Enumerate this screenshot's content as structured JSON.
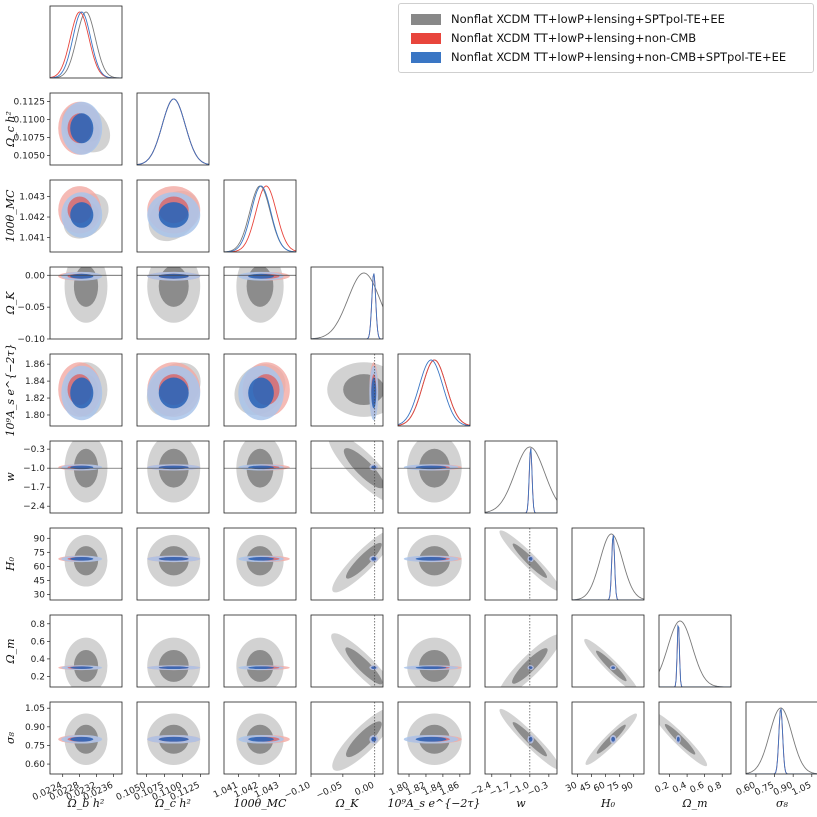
{
  "chart_data": {
    "type": "corner-triangle-plot",
    "params": [
      {
        "label": "Ω_b h²",
        "ticks": [
          "0.0224",
          "0.0228",
          "0.0232",
          "0.0236"
        ],
        "range": [
          0.0221,
          0.0238
        ]
      },
      {
        "label": "Ω_c h²",
        "ticks": [
          "0.1050",
          "0.1075",
          "0.1100",
          "0.1125"
        ],
        "range": [
          0.1037,
          0.1137
        ]
      },
      {
        "label": "100θ_MC",
        "ticks": [
          "1.041",
          "1.042",
          "1.043"
        ],
        "range": [
          1.0403,
          1.0438
        ]
      },
      {
        "label": "Ω_K",
        "ticks": [
          "−0.10",
          "−0.05",
          "0.00"
        ],
        "range": [
          -0.1,
          0.013
        ]
      },
      {
        "label": "10⁹A_s e^{−2τ}",
        "ticks": [
          "1.80",
          "1.82",
          "1.84",
          "1.86"
        ],
        "range": [
          1.787,
          1.872
        ]
      },
      {
        "label": "w",
        "ticks": [
          "−2.4",
          "−1.7",
          "−1.0",
          "−0.3"
        ],
        "range": [
          -2.65,
          0.0
        ]
      },
      {
        "label": "H₀",
        "ticks": [
          "30",
          "45",
          "60",
          "75",
          "90"
        ],
        "range": [
          24,
          101
        ]
      },
      {
        "label": "Ω_m",
        "ticks": [
          "0.2",
          "0.4",
          "0.6",
          "0.8"
        ],
        "range": [
          0.08,
          0.9
        ]
      },
      {
        "label": "σ₈",
        "ticks": [
          "0.60",
          "0.75",
          "0.90",
          "1.05"
        ],
        "range": [
          0.52,
          1.1
        ]
      }
    ],
    "series": [
      {
        "name": "Nonflat XCDM TT+lowP+lensing+SPTpol-TE+EE",
        "color": "#888888",
        "means": [
          0.02295,
          0.1088,
          1.04205,
          -0.017,
          1.83,
          -1.0,
          66.0,
          0.32,
          0.8
        ],
        "sigmas": [
          0.00022,
          0.0016,
          0.0005,
          0.025,
          0.014,
          0.55,
          12.0,
          0.14,
          0.09
        ]
      },
      {
        "name": "Nonflat XCDM TT+lowP+lensing+non-CMB",
        "color": "#e8453c",
        "means": [
          0.0228,
          0.1088,
          1.04235,
          -0.0015,
          1.83,
          -0.97,
          68.0,
          0.3,
          0.8
        ],
        "sigmas": [
          0.00022,
          0.0016,
          0.0005,
          0.003,
          0.014,
          0.05,
          1.5,
          0.012,
          0.015
        ]
      },
      {
        "name": "Nonflat XCDM TT+lowP+lensing+non-CMB+SPTpol-TE+EE",
        "color": "#3a76c4",
        "means": [
          0.02285,
          0.1088,
          1.0421,
          -0.0015,
          1.826,
          -0.97,
          68.0,
          0.3,
          0.8
        ],
        "sigmas": [
          0.00021,
          0.0016,
          0.00048,
          0.003,
          0.014,
          0.05,
          1.5,
          0.012,
          0.015
        ]
      }
    ],
    "reference_lines": {
      "Ω_K": 0.0,
      "w": -1.0
    },
    "legend_position": "top-right",
    "grid": false
  }
}
